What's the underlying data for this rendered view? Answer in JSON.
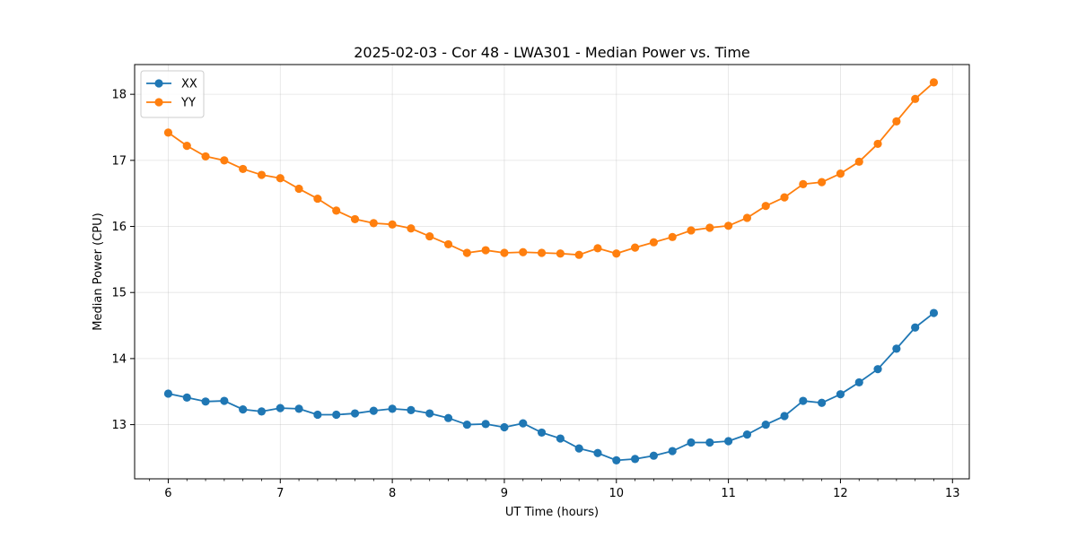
{
  "chart_data": {
    "type": "line",
    "title": "2025-02-03 - Cor 48 - LWA301 - Median Power vs. Time",
    "xlabel": "UT Time (hours)",
    "ylabel": "Median Power (CPU)",
    "xlim": [
      5.7,
      13.15
    ],
    "ylim": [
      12.18,
      18.45
    ],
    "xticks": [
      6,
      7,
      8,
      9,
      10,
      11,
      12,
      13
    ],
    "yticks": [
      13,
      14,
      15,
      16,
      17,
      18
    ],
    "xtick_labels": [
      "6",
      "7",
      "8",
      "9",
      "10",
      "11",
      "12",
      "13"
    ],
    "ytick_labels": [
      "13",
      "14",
      "15",
      "16",
      "17",
      "18"
    ],
    "grid": true,
    "legend_location": "upper-left",
    "x": [
      6.0,
      6.1667,
      6.3333,
      6.5,
      6.6667,
      6.8333,
      7.0,
      7.1667,
      7.3333,
      7.5,
      7.6667,
      7.8333,
      8.0,
      8.1667,
      8.3333,
      8.5,
      8.6667,
      8.8333,
      9.0,
      9.1667,
      9.3333,
      9.5,
      9.6667,
      9.8333,
      10.0,
      10.1667,
      10.3333,
      10.5,
      10.6667,
      10.8333,
      11.0,
      11.1667,
      11.3333,
      11.5,
      11.6667,
      11.8333,
      12.0,
      12.1667,
      12.3333,
      12.5,
      12.6667,
      12.8333
    ],
    "series": [
      {
        "name": "XX",
        "color": "#1f77b4",
        "values": [
          13.47,
          13.41,
          13.35,
          13.36,
          13.23,
          13.2,
          13.25,
          13.24,
          13.15,
          13.15,
          13.17,
          13.21,
          13.24,
          13.22,
          13.17,
          13.1,
          13.0,
          13.01,
          12.96,
          13.02,
          12.88,
          12.79,
          12.64,
          12.57,
          12.46,
          12.48,
          12.53,
          12.6,
          12.73,
          12.73,
          12.75,
          12.85,
          13.0,
          13.13,
          13.36,
          13.33,
          13.46,
          13.64,
          13.84,
          14.15,
          14.47,
          14.69
        ]
      },
      {
        "name": "YY",
        "color": "#ff7f0e",
        "values": [
          17.42,
          17.22,
          17.06,
          17.0,
          16.87,
          16.78,
          16.73,
          16.57,
          16.42,
          16.24,
          16.11,
          16.05,
          16.03,
          15.97,
          15.85,
          15.73,
          15.6,
          15.64,
          15.6,
          15.61,
          15.6,
          15.59,
          15.57,
          15.67,
          15.59,
          15.68,
          15.76,
          15.84,
          15.94,
          15.98,
          16.01,
          16.13,
          16.31,
          16.44,
          16.64,
          16.67,
          16.8,
          16.98,
          17.25,
          17.59,
          17.93,
          18.18
        ]
      }
    ]
  }
}
